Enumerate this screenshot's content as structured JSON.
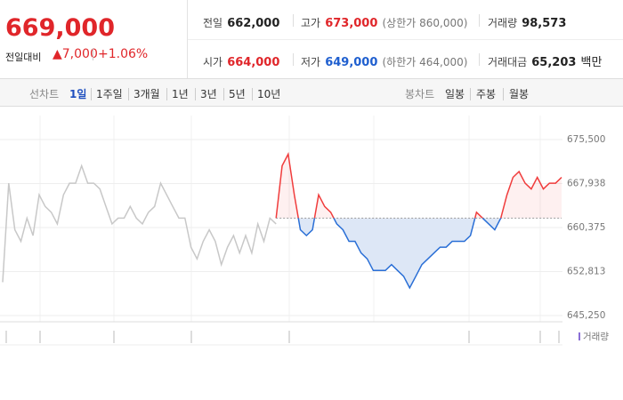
{
  "quote": {
    "price": "669,000",
    "change_caption": "전일대비",
    "change": "▲7,000",
    "change_rate": "+1.06%"
  },
  "stats": [
    {
      "label": "전일",
      "value": "662,000"
    },
    {
      "label": "고가",
      "value": "673,000",
      "note": "(상한가 860,000)"
    },
    {
      "label": "거래량",
      "value": "98,573"
    },
    {
      "label": "시가",
      "value": "664,000"
    },
    {
      "label": "저가",
      "value": "649,000",
      "note": "(하한가 464,000)"
    },
    {
      "label": "거래대금",
      "value": "65,203",
      "unit": "백만"
    }
  ],
  "tabs": {
    "line_label": "선차트",
    "line_periods": [
      "1일",
      "1주일",
      "3개월",
      "1년",
      "3년",
      "5년",
      "10년"
    ],
    "candle_label": "봉차트",
    "candle_periods": [
      "일봉",
      "주봉",
      "월봉"
    ]
  },
  "chart_data": {
    "type": "line",
    "ylim": [
      645250,
      675500
    ],
    "yticks": [
      {
        "value": 645250,
        "label": "645,250"
      },
      {
        "value": 652813,
        "label": "652,813"
      },
      {
        "value": 660375,
        "label": "660,375"
      },
      {
        "value": 667938,
        "label": "667,938"
      },
      {
        "value": 675500,
        "label": "675,500"
      }
    ],
    "grid": true,
    "volume_legend": "거래량",
    "series": [
      {
        "color": "#c8c8c8",
        "values": [
          651000,
          668000,
          660000,
          658000,
          662000,
          659000,
          666000,
          664000,
          663000,
          661000,
          666000,
          668000,
          668000,
          671000,
          668000,
          668000,
          667000,
          664000,
          661000,
          662000,
          662000,
          664000,
          662000,
          661000,
          663000,
          664000,
          668000,
          666000,
          664000,
          662000,
          662000,
          657000,
          655000,
          658000,
          660000,
          658000,
          654000,
          657000,
          659000,
          656000,
          659000,
          656000,
          661000,
          658000,
          662000,
          661000,
          null,
          null,
          null,
          null,
          null,
          null,
          null,
          null,
          null,
          null,
          null,
          null,
          null,
          null,
          null,
          null,
          null,
          null,
          null,
          null,
          null,
          null,
          null,
          null,
          null,
          null,
          null,
          null,
          null,
          null,
          null,
          null,
          null,
          null,
          null,
          null,
          null,
          null,
          null,
          null,
          null,
          null,
          null,
          null,
          null,
          null,
          null
        ]
      },
      {
        "color": "#f03c3c",
        "values": [
          null,
          null,
          null,
          null,
          null,
          null,
          null,
          null,
          null,
          null,
          null,
          null,
          null,
          null,
          null,
          null,
          null,
          null,
          null,
          null,
          null,
          null,
          null,
          null,
          null,
          null,
          null,
          null,
          null,
          null,
          null,
          null,
          null,
          null,
          null,
          null,
          null,
          null,
          null,
          null,
          null,
          null,
          null,
          null,
          null,
          662000,
          671000,
          673000,
          666000,
          660000,
          659000,
          660000,
          666000,
          664000,
          663000,
          661000,
          660000,
          658000,
          658000,
          656000,
          655000,
          653000,
          653000,
          653000,
          654000,
          653000,
          652000,
          650000,
          652000,
          654000,
          655000,
          656000,
          657000,
          657000,
          658000,
          658000,
          658000,
          659000,
          663000,
          662000,
          661000,
          660000,
          662000,
          666000,
          669000,
          670000,
          668000,
          667000,
          669000,
          667000,
          668000,
          668000,
          669000
        ]
      }
    ]
  }
}
